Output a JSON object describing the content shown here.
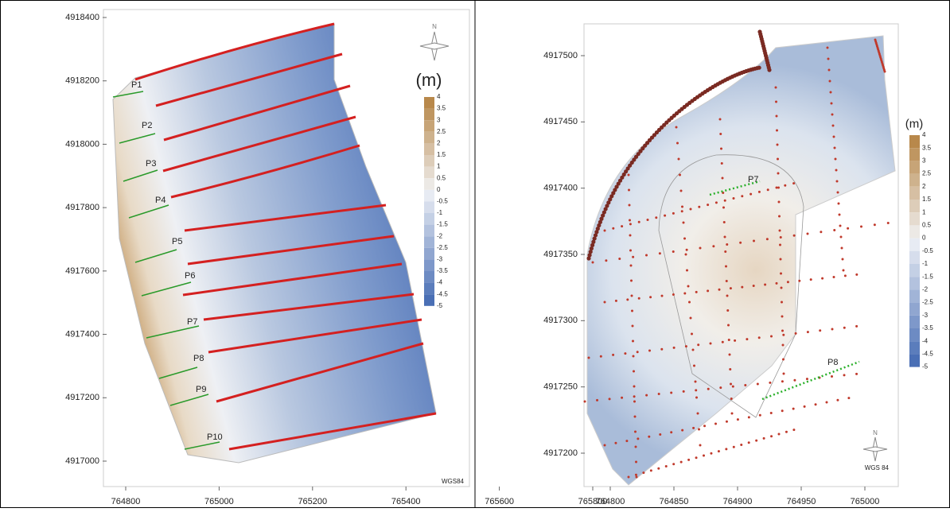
{
  "left_map": {
    "yticks": [
      4918400,
      4918200,
      4918000,
      4917800,
      4917600,
      4917400,
      4917200,
      4917000
    ],
    "xticks": [
      764800,
      765000,
      765200,
      765400,
      765600,
      765800
    ],
    "profiles": [
      "P1",
      "P2",
      "P3",
      "P4",
      "P5",
      "P6",
      "P7",
      "P8",
      "P9",
      "P10"
    ],
    "legend": {
      "title": "(m)",
      "levels": [
        4,
        3.5,
        3,
        2.5,
        2,
        1.5,
        1,
        0.5,
        0,
        -0.5,
        -1,
        -1.5,
        -2,
        -2.5,
        -3,
        -3.5,
        -4,
        -4.5,
        -5
      ]
    },
    "north": "N",
    "datum": "WGS84"
  },
  "right_map": {
    "yticks": [
      4917500,
      4917450,
      4917400,
      4917350,
      4917300,
      4917250,
      4917200
    ],
    "xticks": [
      764800,
      764850,
      764900,
      764950,
      765000
    ],
    "profiles": [
      "P7",
      "P8"
    ],
    "legend": {
      "title": "(m)",
      "levels": [
        4,
        3.5,
        3,
        2.5,
        2,
        1.5,
        1,
        0.5,
        0,
        -0.5,
        -1,
        -1.5,
        -2,
        -2.5,
        -3,
        -3.5,
        -4,
        -4.5,
        -5
      ]
    },
    "north": "N",
    "datum": "WGS 84"
  }
}
